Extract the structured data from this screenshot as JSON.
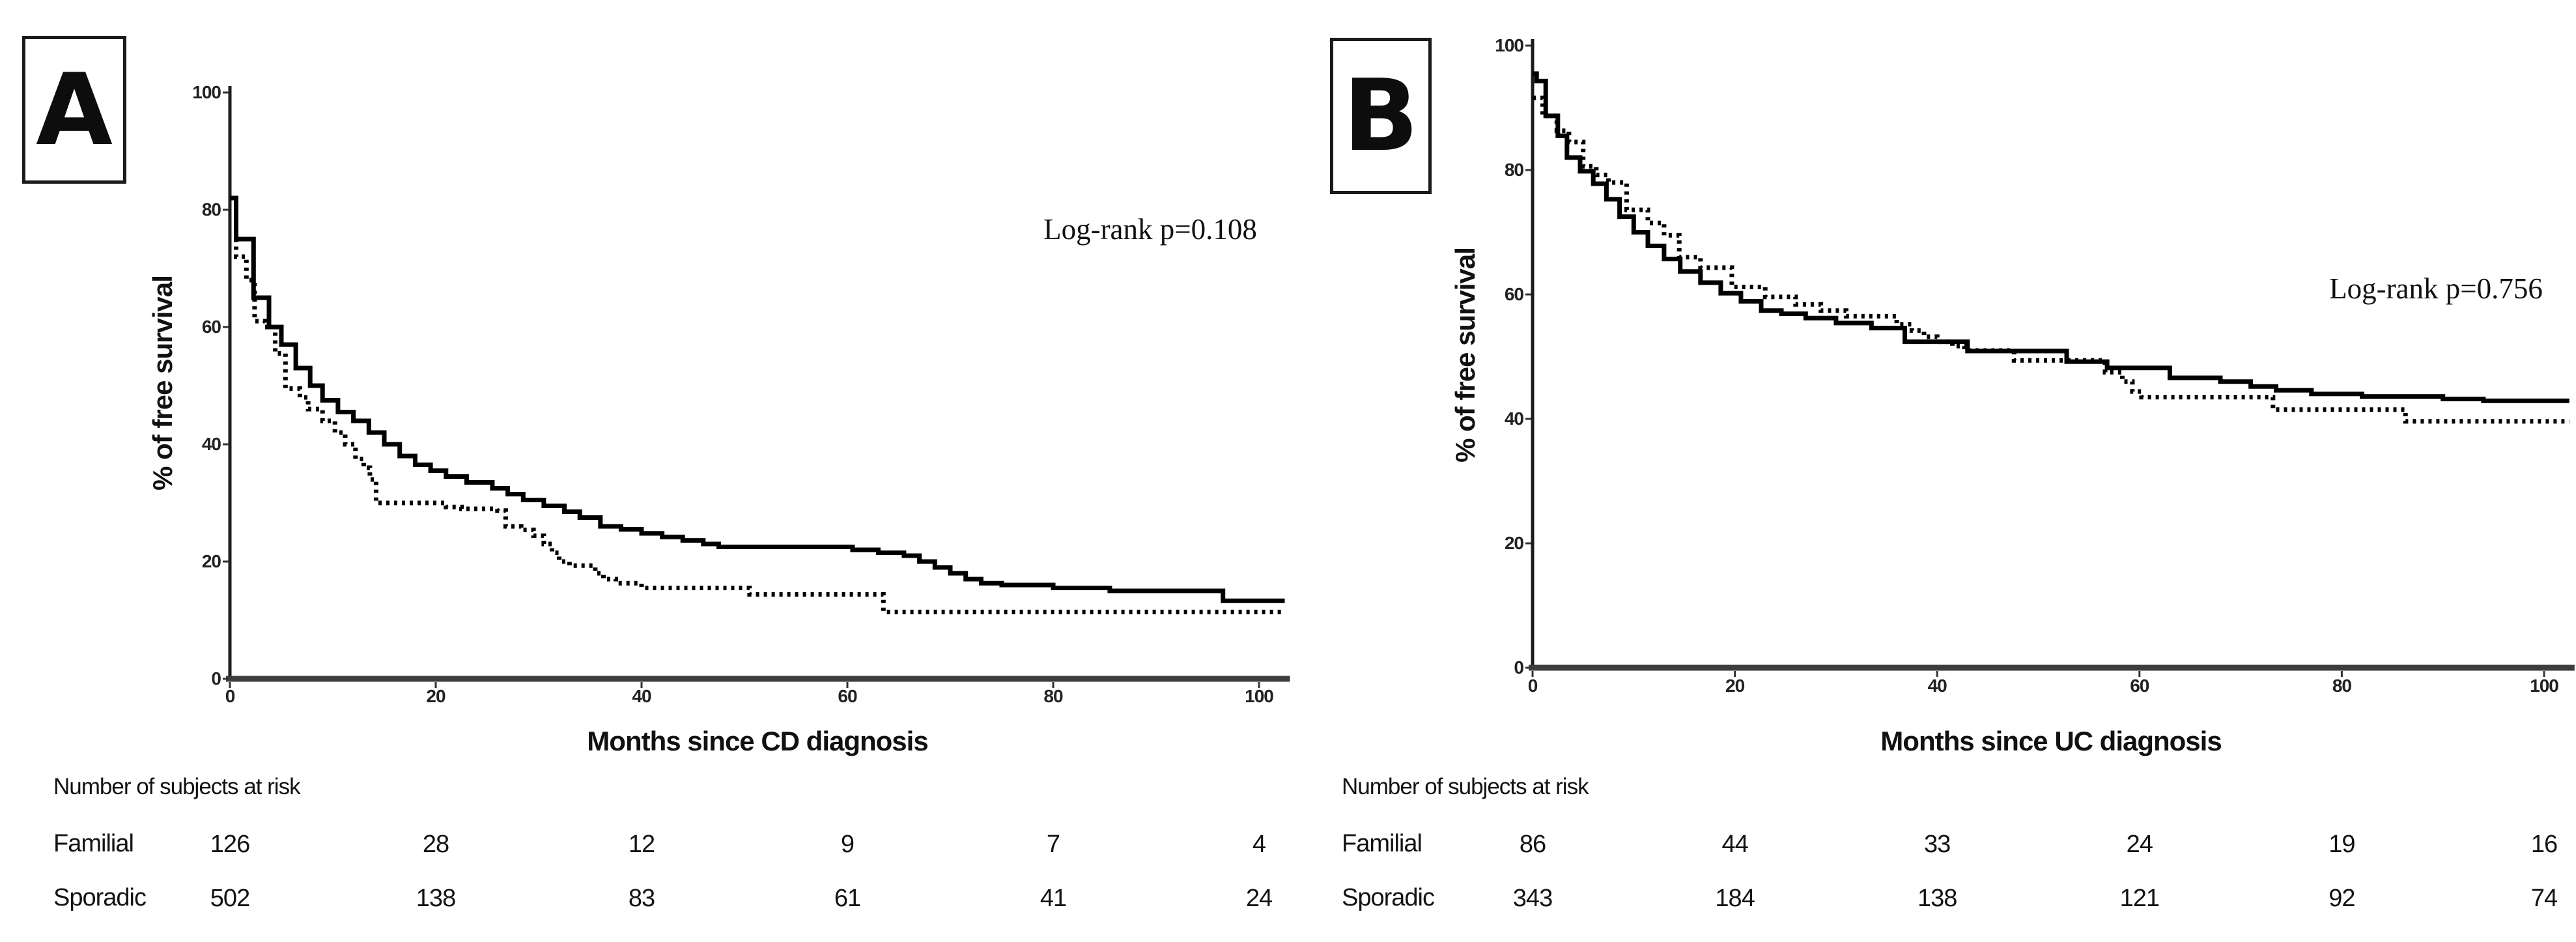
{
  "page": {
    "background": "#ffffff",
    "curve_color": "#000000",
    "axis_color": "#3d3d3d"
  },
  "chart_data": [
    {
      "type": "line",
      "subtype": "kaplan-meier-step",
      "panel_label": "A",
      "annotation": "Log-rank p=0.108",
      "title": "",
      "xlabel": "Months since CD diagnosis",
      "ylabel": "% of free survival",
      "xlim": [
        0,
        102
      ],
      "ylim": [
        0,
        100
      ],
      "x_ticks": [
        0,
        20,
        40,
        60,
        80,
        100
      ],
      "y_ticks": [
        0,
        20,
        40,
        60,
        80,
        100
      ],
      "grid": false,
      "legend_position": "none",
      "series": [
        {
          "name": "solid",
          "style": "solid",
          "points": [
            [
              0,
              82
            ],
            [
              0.6,
              75
            ],
            [
              2.3,
              65
            ],
            [
              3.8,
              60
            ],
            [
              5,
              57
            ],
            [
              6.4,
              53
            ],
            [
              7.8,
              50
            ],
            [
              9,
              47.5
            ],
            [
              10.5,
              45.5
            ],
            [
              12,
              44
            ],
            [
              13.5,
              42
            ],
            [
              15,
              40
            ],
            [
              16.5,
              38
            ],
            [
              18,
              36.5
            ],
            [
              19.5,
              35.5
            ],
            [
              21,
              34.5
            ],
            [
              23,
              33.5
            ],
            [
              25.5,
              32.5
            ],
            [
              27,
              31.5
            ],
            [
              28.5,
              30.5
            ],
            [
              30.5,
              29.5
            ],
            [
              32.5,
              28.5
            ],
            [
              34,
              27.5
            ],
            [
              36,
              26
            ],
            [
              38,
              25.5
            ],
            [
              40,
              24.8
            ],
            [
              42,
              24.2
            ],
            [
              44,
              23.6
            ],
            [
              46,
              23
            ],
            [
              47.5,
              22.5
            ],
            [
              60.5,
              22
            ],
            [
              63,
              21.5
            ],
            [
              65.5,
              21
            ],
            [
              67,
              20
            ],
            [
              68.5,
              19
            ],
            [
              70,
              18
            ],
            [
              71.5,
              17
            ],
            [
              73,
              16.3
            ],
            [
              75,
              16
            ],
            [
              80,
              15.5
            ],
            [
              85.5,
              15
            ],
            [
              96.5,
              13.3
            ],
            [
              102.5,
              13.3
            ]
          ]
        },
        {
          "name": "dotted",
          "style": "dotted",
          "points": [
            [
              0,
              82
            ],
            [
              0.6,
              72
            ],
            [
              1.6,
              68
            ],
            [
              2.4,
              61
            ],
            [
              3.4,
              60
            ],
            [
              4.4,
              55.5
            ],
            [
              5.4,
              49.5
            ],
            [
              6.8,
              48
            ],
            [
              7.6,
              46
            ],
            [
              9,
              44
            ],
            [
              10.2,
              42
            ],
            [
              11.2,
              40
            ],
            [
              12.2,
              37.5
            ],
            [
              13,
              36
            ],
            [
              13.6,
              34
            ],
            [
              14.2,
              30
            ],
            [
              21,
              29.3
            ],
            [
              22.5,
              29
            ],
            [
              26,
              28.7
            ],
            [
              26.8,
              26
            ],
            [
              28.3,
              25.4
            ],
            [
              29.5,
              24.4
            ],
            [
              30.5,
              23
            ],
            [
              31.3,
              21.5
            ],
            [
              32,
              20
            ],
            [
              33,
              19.3
            ],
            [
              35.5,
              18
            ],
            [
              36.3,
              17
            ],
            [
              37.5,
              16.3
            ],
            [
              40,
              15.5
            ],
            [
              50.5,
              14.4
            ],
            [
              63.5,
              11.4
            ],
            [
              102.5,
              11.4
            ]
          ]
        }
      ],
      "risk_table": {
        "title": "Number of subjects at risk",
        "columns_at_months": [
          0,
          20,
          40,
          60,
          80,
          100
        ],
        "rows": [
          {
            "label": "Familial",
            "values": [
              126,
              28,
              12,
              9,
              7,
              4
            ]
          },
          {
            "label": "Sporadic",
            "values": [
              502,
              138,
              83,
              61,
              41,
              24
            ]
          }
        ]
      }
    },
    {
      "type": "line",
      "subtype": "kaplan-meier-step",
      "panel_label": "B",
      "annotation": "Log-rank p=0.756",
      "title": "",
      "xlabel": "Months since UC diagnosis",
      "ylabel": "% of free survival",
      "xlim": [
        0,
        102
      ],
      "ylim": [
        0,
        100
      ],
      "x_ticks": [
        0,
        20,
        40,
        60,
        80,
        100
      ],
      "y_ticks": [
        0,
        20,
        40,
        60,
        80,
        100
      ],
      "grid": false,
      "legend_position": "none",
      "series": [
        {
          "name": "solid",
          "style": "solid",
          "points": [
            [
              0,
              95.5
            ],
            [
              0.4,
              94.3
            ],
            [
              1.3,
              88.7
            ],
            [
              2.5,
              85.5
            ],
            [
              3.4,
              82
            ],
            [
              4.7,
              79.8
            ],
            [
              6,
              77.8
            ],
            [
              7.3,
              75.3
            ],
            [
              8.6,
              72.5
            ],
            [
              10,
              70
            ],
            [
              11.4,
              67.8
            ],
            [
              13,
              65.7
            ],
            [
              14.6,
              63.7
            ],
            [
              16.6,
              61.9
            ],
            [
              18.6,
              60.2
            ],
            [
              20.6,
              58.9
            ],
            [
              22.6,
              57.4
            ],
            [
              24.6,
              56.9
            ],
            [
              27,
              56.2
            ],
            [
              30,
              55.4
            ],
            [
              33.5,
              54.6
            ],
            [
              36.8,
              52.4
            ],
            [
              43,
              50.9
            ],
            [
              52.8,
              49.2
            ],
            [
              56.8,
              48.2
            ],
            [
              63,
              46.6
            ],
            [
              68,
              46
            ],
            [
              71,
              45.2
            ],
            [
              73.5,
              44.6
            ],
            [
              77,
              44
            ],
            [
              82,
              43.6
            ],
            [
              90,
              43.2
            ],
            [
              94,
              42.9
            ],
            [
              102.5,
              42.9
            ]
          ]
        },
        {
          "name": "dotted",
          "style": "dotted",
          "points": [
            [
              0,
              91.6
            ],
            [
              1,
              88.7
            ],
            [
              2.4,
              86.3
            ],
            [
              3.6,
              84.5
            ],
            [
              5,
              80.6
            ],
            [
              6.3,
              79.2
            ],
            [
              7.5,
              78
            ],
            [
              9.3,
              73.6
            ],
            [
              11.4,
              71.5
            ],
            [
              13,
              69.5
            ],
            [
              14.5,
              66
            ],
            [
              16.6,
              64.3
            ],
            [
              19.7,
              61.2
            ],
            [
              23,
              59.6
            ],
            [
              26,
              58.4
            ],
            [
              28.5,
              57.4
            ],
            [
              31,
              56.5
            ],
            [
              36,
              55.2
            ],
            [
              37.5,
              54.2
            ],
            [
              38.7,
              53.2
            ],
            [
              40,
              52.4
            ],
            [
              41.5,
              51.7
            ],
            [
              42.7,
              51
            ],
            [
              47.6,
              49.4
            ],
            [
              56.6,
              47.5
            ],
            [
              58.3,
              46
            ],
            [
              59.3,
              44.4
            ],
            [
              60.2,
              43.5
            ],
            [
              73.2,
              41.5
            ],
            [
              86.3,
              39.6
            ],
            [
              102.5,
              39.6
            ]
          ]
        }
      ],
      "risk_table": {
        "title": "Number of subjects at risk",
        "columns_at_months": [
          0,
          20,
          40,
          60,
          80,
          100
        ],
        "rows": [
          {
            "label": "Familial",
            "values": [
              86,
              44,
              33,
              24,
              19,
              16
            ]
          },
          {
            "label": "Sporadic",
            "values": [
              343,
              184,
              138,
              121,
              92,
              74
            ]
          }
        ]
      }
    }
  ]
}
